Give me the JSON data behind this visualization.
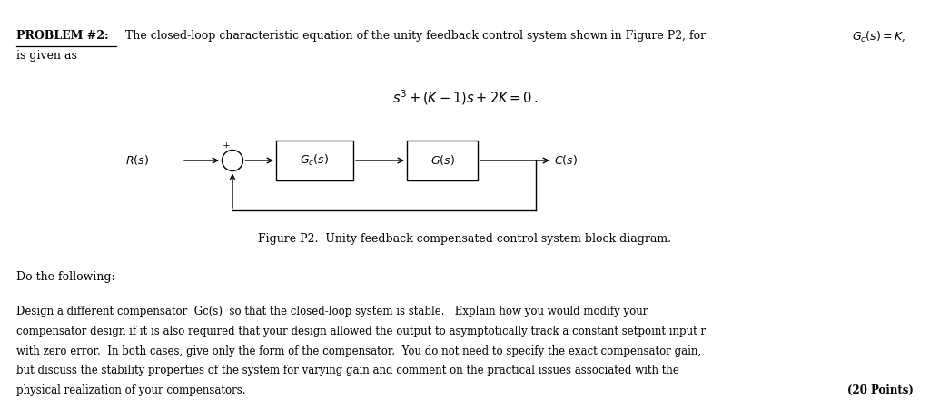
{
  "bg_color": "#ffffff",
  "figure_caption": "Figure P2.  Unity feedback compensated control system block diagram.",
  "do_following": "Do the following:",
  "body_text_line1": "Design a different compensator  Gc(s)  so that the closed-loop system is stable.   Explain how you would modify your",
  "body_text_line2": "compensator design if it is also required that your design allowed the output to asymptotically track a constant setpoint input r",
  "body_text_line3": "with zero error.  In both cases, give only the form of the compensator.  You do not need to specify the exact compensator gain,",
  "body_text_line4": "but discuss the stability properties of the system for varying gain and comment on the practical issues associated with the",
  "body_text_line5": "physical realization of your compensators.",
  "points_text": "(20 Points)"
}
